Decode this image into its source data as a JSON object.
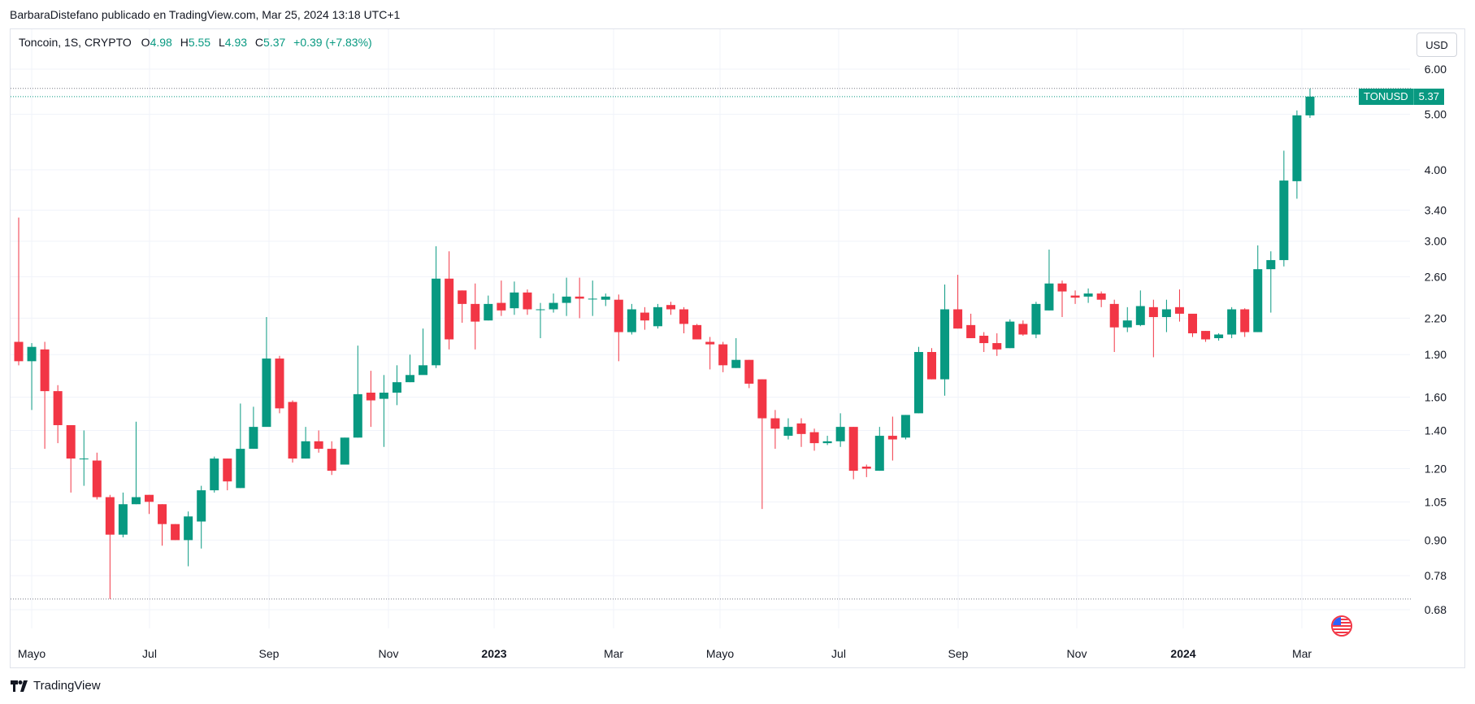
{
  "header": {
    "published_line": "BarbaraDistefano publicado en TradingView.com, Mar 25, 2024 13:18 UTC+1"
  },
  "legend": {
    "symbol": "Toncoin, 1S, CRYPTO",
    "o_label": "O",
    "o_value": "4.98",
    "h_label": "H",
    "h_value": "5.55",
    "l_label": "L",
    "l_value": "4.93",
    "c_label": "C",
    "c_value": "5.37",
    "change": "+0.39 (+7.83%)"
  },
  "currency_button": "USD",
  "price_tag": {
    "ticker": "TONUSD",
    "value": "5.37"
  },
  "footer": {
    "brand": "TradingView"
  },
  "icons": {
    "brand_logo": "tradingview-logo-icon",
    "flag": "us-flag-icon"
  },
  "colors": {
    "up": "#089981",
    "down": "#f23645",
    "grid": "#f0f3fa"
  },
  "chart_data": {
    "type": "candlestick",
    "yscale": "log",
    "ylim": [
      0.6,
      6.4
    ],
    "y_ticks": [
      "6.00",
      "5.00",
      "4.00",
      "3.40",
      "3.00",
      "2.60",
      "2.20",
      "1.90",
      "1.60",
      "1.40",
      "1.20",
      "1.05",
      "0.90",
      "0.78",
      "0.68"
    ],
    "x_ticks": [
      "Mayo",
      "Jul",
      "Sep",
      "Nov",
      "2023",
      "Mar",
      "Mayo",
      "Jul",
      "Sep",
      "Nov",
      "2024",
      "Mar"
    ],
    "x_bold": [
      "2023",
      "2024"
    ],
    "dotted_levels": [
      5.55,
      5.37,
      0.71
    ],
    "candles": [
      [
        2.0,
        1.85,
        3.3,
        1.82
      ],
      [
        1.85,
        1.96,
        1.99,
        1.52
      ],
      [
        1.94,
        1.64,
        2.0,
        1.3
      ],
      [
        1.64,
        1.43,
        1.68,
        1.33
      ],
      [
        1.43,
        1.25,
        1.43,
        1.09
      ],
      [
        1.25,
        1.25,
        1.4,
        1.12
      ],
      [
        1.24,
        1.07,
        1.28,
        1.06
      ],
      [
        1.07,
        0.92,
        1.08,
        0.71
      ],
      [
        0.92,
        1.04,
        1.09,
        0.91
      ],
      [
        1.04,
        1.07,
        1.45,
        1.04
      ],
      [
        1.08,
        1.05,
        1.08,
        1.0
      ],
      [
        1.04,
        0.96,
        1.04,
        0.88
      ],
      [
        0.96,
        0.9,
        0.96,
        0.9
      ],
      [
        0.9,
        0.99,
        1.01,
        0.81
      ],
      [
        0.97,
        1.1,
        1.12,
        0.87
      ],
      [
        1.1,
        1.25,
        1.26,
        1.09
      ],
      [
        1.25,
        1.14,
        1.25,
        1.1
      ],
      [
        1.11,
        1.3,
        1.56,
        1.11
      ],
      [
        1.3,
        1.42,
        1.54,
        1.3
      ],
      [
        1.42,
        1.87,
        2.21,
        1.44
      ],
      [
        1.87,
        1.53,
        1.89,
        1.5
      ],
      [
        1.57,
        1.25,
        1.58,
        1.23
      ],
      [
        1.25,
        1.34,
        1.42,
        1.25
      ],
      [
        1.34,
        1.3,
        1.4,
        1.28
      ],
      [
        1.3,
        1.19,
        1.34,
        1.17
      ],
      [
        1.22,
        1.36,
        1.36,
        1.22
      ],
      [
        1.36,
        1.62,
        1.97,
        1.36
      ],
      [
        1.63,
        1.58,
        1.78,
        1.42
      ],
      [
        1.59,
        1.63,
        1.75,
        1.31
      ],
      [
        1.63,
        1.7,
        1.82,
        1.55
      ],
      [
        1.7,
        1.75,
        1.9,
        1.7
      ],
      [
        1.75,
        1.82,
        2.11,
        1.8
      ],
      [
        1.82,
        2.58,
        2.94,
        1.8
      ],
      [
        2.58,
        2.02,
        2.88,
        1.94
      ],
      [
        2.46,
        2.33,
        2.46,
        2.16
      ],
      [
        2.33,
        2.17,
        2.53,
        1.94
      ],
      [
        2.18,
        2.33,
        2.41,
        2.18
      ],
      [
        2.34,
        2.27,
        2.56,
        2.22
      ],
      [
        2.29,
        2.44,
        2.55,
        2.23
      ],
      [
        2.44,
        2.28,
        2.47,
        2.23
      ],
      [
        2.28,
        2.28,
        2.34,
        2.03
      ],
      [
        2.28,
        2.34,
        2.43,
        2.25
      ],
      [
        2.34,
        2.4,
        2.59,
        2.22
      ],
      [
        2.4,
        2.38,
        2.59,
        2.2
      ],
      [
        2.38,
        2.38,
        2.56,
        2.22
      ],
      [
        2.37,
        2.4,
        2.43,
        2.31
      ],
      [
        2.37,
        2.08,
        2.42,
        1.85
      ],
      [
        2.08,
        2.28,
        2.33,
        2.06
      ],
      [
        2.25,
        2.18,
        2.3,
        2.1
      ],
      [
        2.13,
        2.3,
        2.33,
        2.11
      ],
      [
        2.32,
        2.28,
        2.35,
        2.23
      ],
      [
        2.28,
        2.15,
        2.3,
        2.07
      ],
      [
        2.14,
        2.02,
        2.15,
        2.02
      ],
      [
        2.0,
        1.98,
        2.04,
        1.79
      ],
      [
        1.98,
        1.82,
        2.0,
        1.77
      ],
      [
        1.8,
        1.86,
        2.03,
        1.8
      ],
      [
        1.86,
        1.69,
        1.86,
        1.66
      ],
      [
        1.72,
        1.47,
        1.72,
        1.02
      ],
      [
        1.47,
        1.41,
        1.52,
        1.3
      ],
      [
        1.37,
        1.42,
        1.47,
        1.35
      ],
      [
        1.44,
        1.38,
        1.47,
        1.31
      ],
      [
        1.39,
        1.33,
        1.41,
        1.29
      ],
      [
        1.33,
        1.34,
        1.37,
        1.32
      ],
      [
        1.34,
        1.42,
        1.5,
        1.31
      ],
      [
        1.42,
        1.19,
        1.42,
        1.15
      ],
      [
        1.21,
        1.2,
        1.22,
        1.16
      ],
      [
        1.19,
        1.37,
        1.42,
        1.19
      ],
      [
        1.37,
        1.35,
        1.48,
        1.24
      ],
      [
        1.36,
        1.49,
        1.49,
        1.35
      ],
      [
        1.5,
        1.92,
        1.96,
        1.5
      ],
      [
        1.92,
        1.72,
        1.95,
        1.72
      ],
      [
        1.72,
        2.28,
        2.52,
        1.61
      ],
      [
        2.28,
        2.11,
        2.62,
        2.11
      ],
      [
        2.14,
        2.03,
        2.24,
        2.03
      ],
      [
        2.05,
        1.99,
        2.08,
        1.92
      ],
      [
        1.99,
        1.94,
        2.07,
        1.89
      ],
      [
        1.95,
        2.17,
        2.19,
        1.95
      ],
      [
        2.15,
        2.06,
        2.18,
        2.05
      ],
      [
        2.06,
        2.33,
        2.35,
        2.03
      ],
      [
        2.27,
        2.53,
        2.9,
        2.27
      ],
      [
        2.53,
        2.45,
        2.56,
        2.21
      ],
      [
        2.41,
        2.39,
        2.46,
        2.33
      ],
      [
        2.4,
        2.43,
        2.48,
        2.34
      ],
      [
        2.43,
        2.37,
        2.45,
        2.3
      ],
      [
        2.33,
        2.12,
        2.37,
        1.92
      ],
      [
        2.12,
        2.18,
        2.3,
        2.08
      ],
      [
        2.14,
        2.31,
        2.46,
        2.13
      ],
      [
        2.3,
        2.21,
        2.37,
        1.88
      ],
      [
        2.21,
        2.28,
        2.37,
        2.08
      ],
      [
        2.3,
        2.24,
        2.47,
        2.17
      ],
      [
        2.24,
        2.07,
        2.23,
        2.04
      ],
      [
        2.09,
        2.02,
        2.09,
        2.0
      ],
      [
        2.03,
        2.06,
        2.07,
        2.01
      ],
      [
        2.06,
        2.28,
        2.3,
        2.03
      ],
      [
        2.28,
        2.08,
        2.29,
        2.04
      ],
      [
        2.08,
        2.68,
        2.95,
        2.08
      ],
      [
        2.68,
        2.78,
        2.88,
        2.25
      ],
      [
        2.78,
        3.83,
        4.32,
        2.71
      ],
      [
        3.82,
        4.98,
        5.08,
        3.56
      ],
      [
        4.98,
        5.37,
        5.55,
        4.93
      ]
    ]
  }
}
